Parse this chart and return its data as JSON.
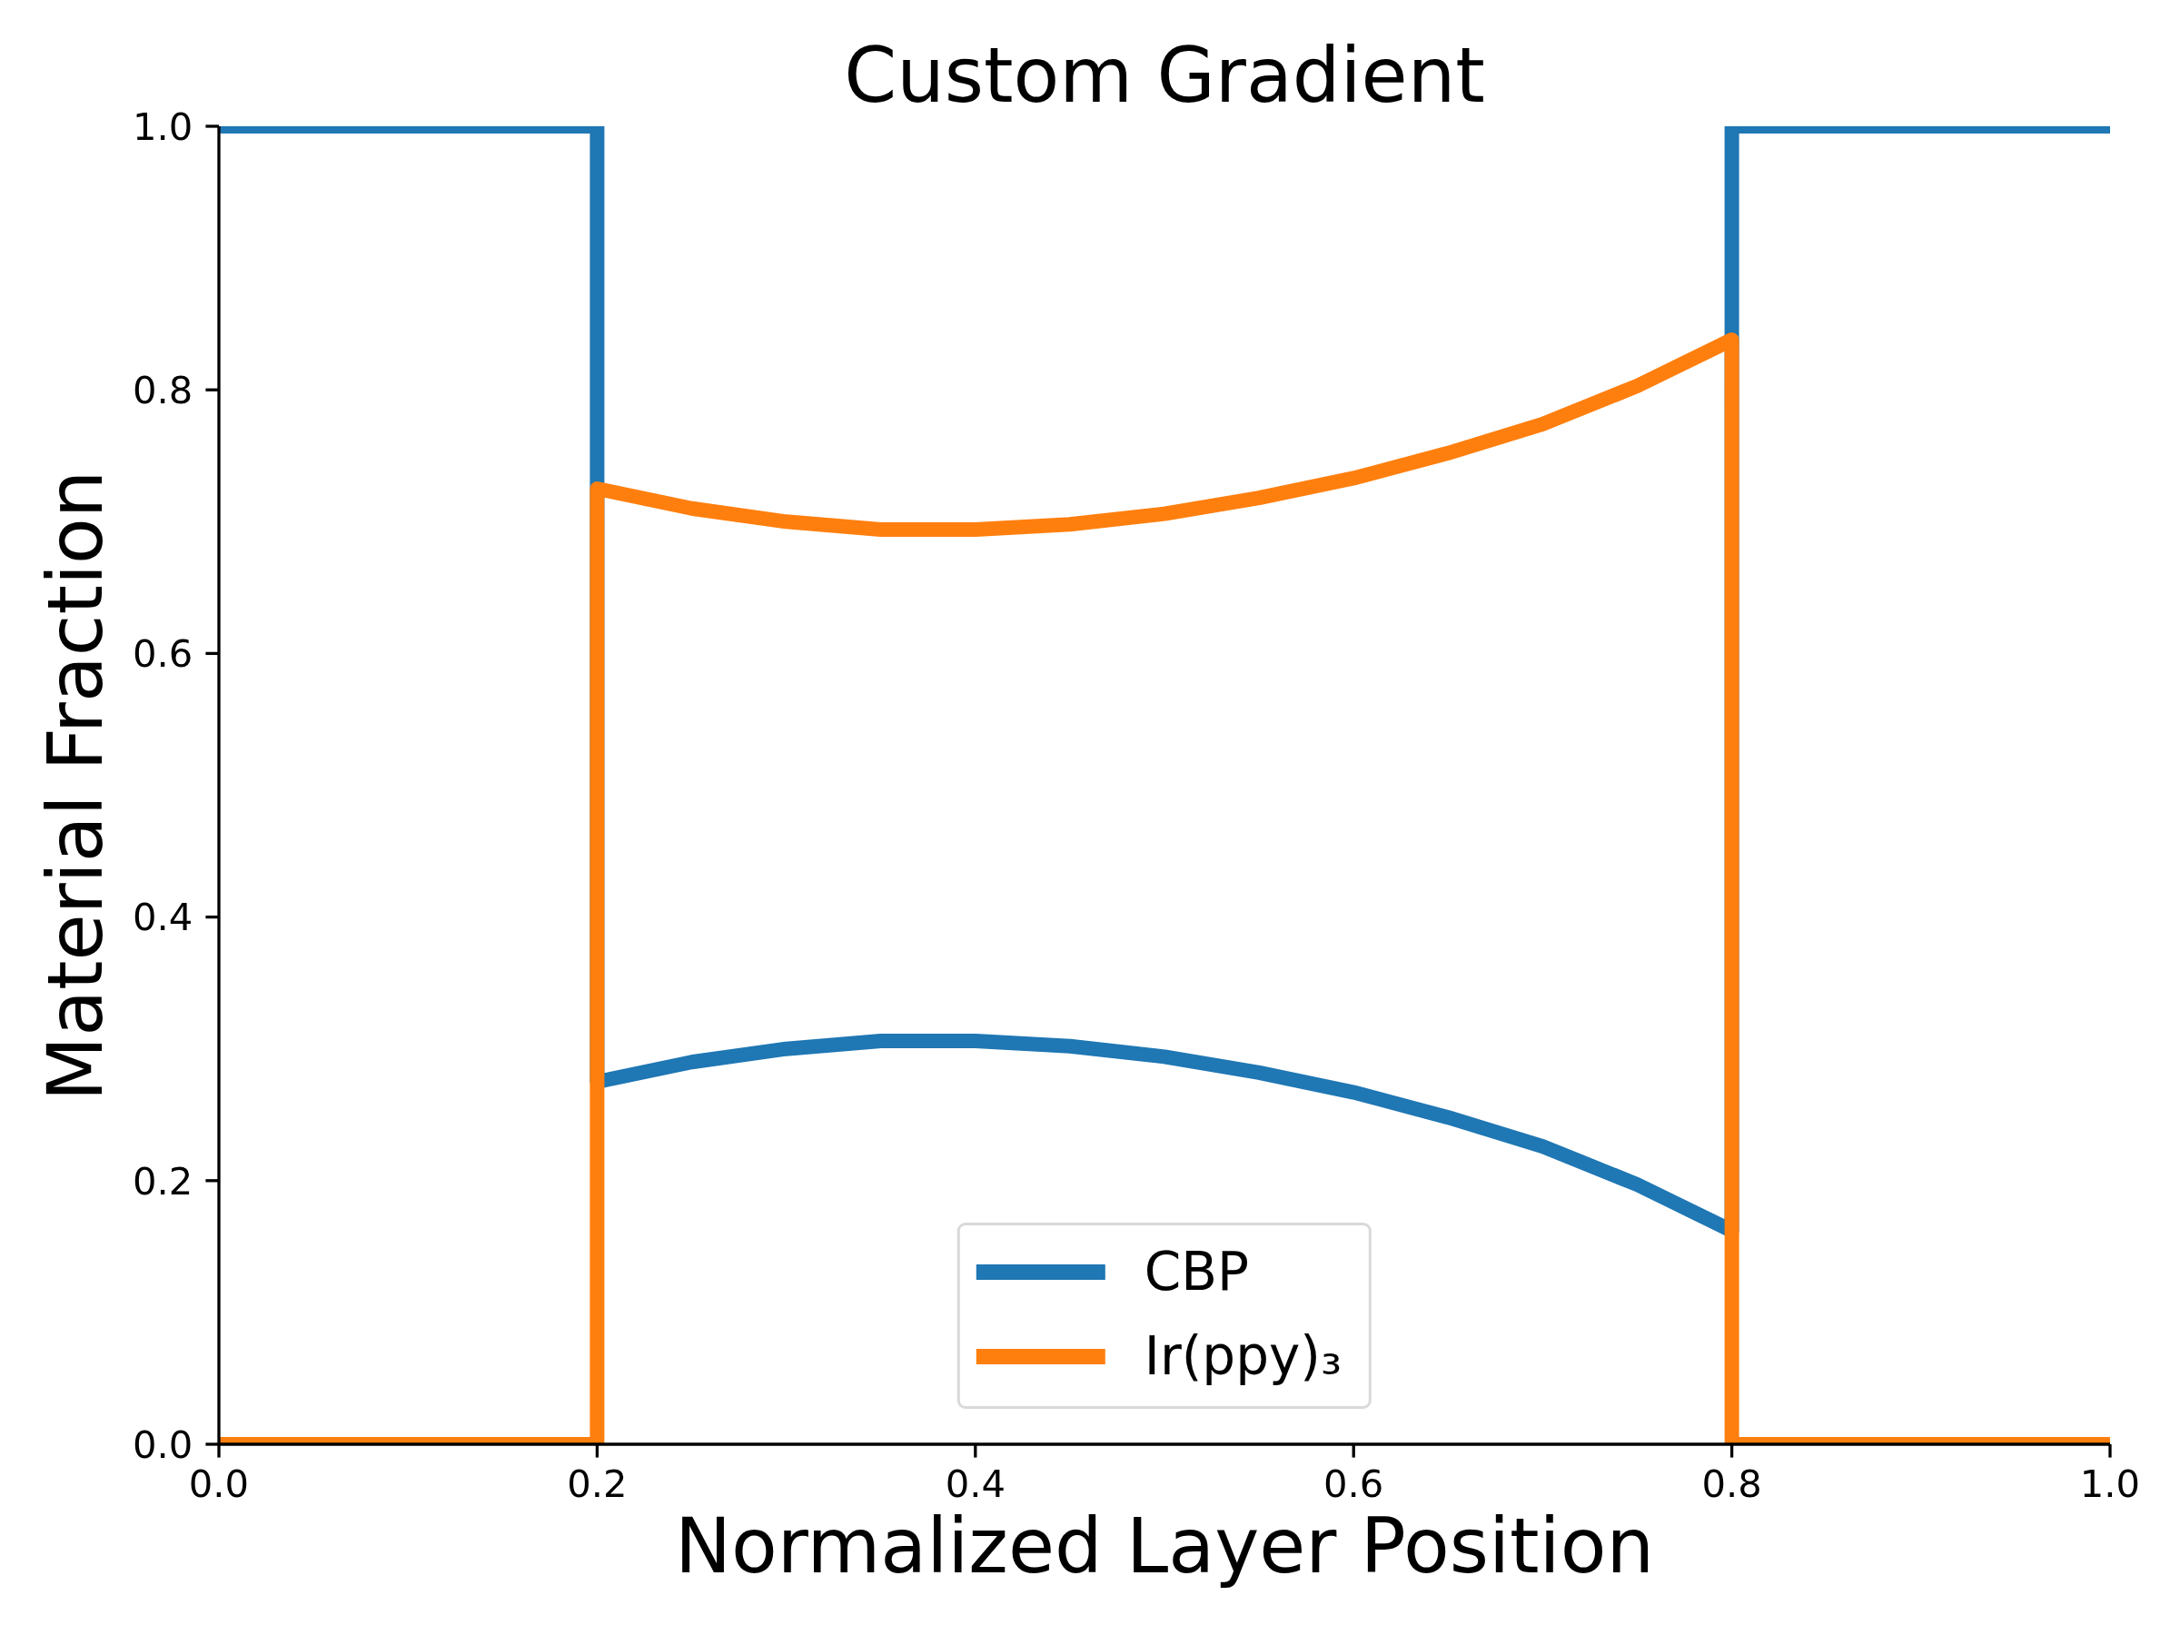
{
  "chart_data": {
    "type": "line",
    "title": "Custom Gradient",
    "xlabel": "Normalized Layer Position",
    "ylabel": "Material Fraction",
    "xlim": [
      0,
      1
    ],
    "ylim": [
      0,
      1
    ],
    "xticks": [
      {
        "value": 0,
        "label": "0.0"
      },
      0.2,
      0.4,
      0.6,
      0.8,
      {
        "value": 1,
        "label": "1.0"
      }
    ],
    "yticks": [
      {
        "value": 0,
        "label": "0.0"
      },
      0.2,
      0.4,
      0.6,
      0.8,
      {
        "value": 1,
        "label": "1.0"
      }
    ],
    "legend": "bottom",
    "series": [
      {
        "name": "CBP",
        "color": "#1f77b4",
        "x": [
          0,
          0.2,
          0.2,
          0.25,
          0.3,
          0.35,
          0.4,
          0.45,
          0.5,
          0.55,
          0.6,
          0.65,
          0.7,
          0.75,
          0.8,
          0.8,
          1
        ],
        "values": [
          1,
          1,
          0.275,
          0.29,
          0.3,
          0.306,
          0.306,
          0.302,
          0.294,
          0.282,
          0.267,
          0.248,
          0.226,
          0.197,
          0.162,
          1,
          1
        ]
      },
      {
        "name": "Ir(ppy)₃",
        "color": "#ff7f0e",
        "x": [
          0,
          0.2,
          0.2,
          0.25,
          0.3,
          0.35,
          0.4,
          0.45,
          0.5,
          0.55,
          0.6,
          0.65,
          0.7,
          0.75,
          0.8,
          0.8,
          1
        ],
        "values": [
          0,
          0,
          0.725,
          0.71,
          0.7,
          0.694,
          0.694,
          0.698,
          0.706,
          0.718,
          0.733,
          0.752,
          0.774,
          0.803,
          0.838,
          0,
          0
        ]
      }
    ]
  }
}
